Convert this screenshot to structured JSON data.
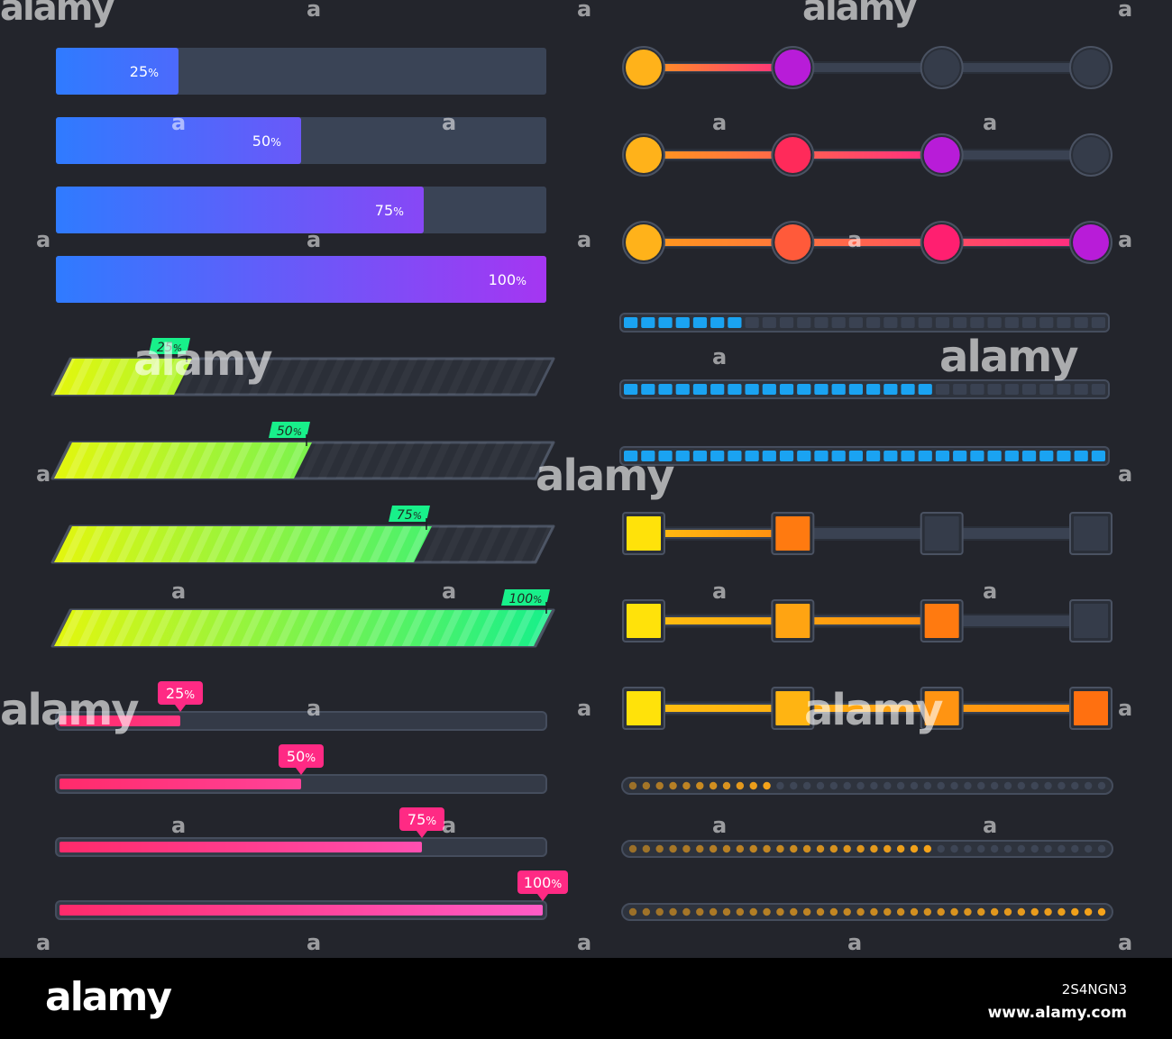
{
  "colors": {
    "background": "#23252c",
    "track": "#3a4456",
    "blue_start": "#2f7bff",
    "violet_end": "#a536f2",
    "green_start": "#e2f60e",
    "green_end": "#18f08a",
    "pink": "#ff2a84",
    "yellow": "#ffe20a",
    "orange": "#ff7a10",
    "cyan": "#1aa3f2",
    "gold": "#f5a31a"
  },
  "gradient_bars": [
    {
      "label": "25",
      "unit": "%",
      "value": 0.25
    },
    {
      "label": "50",
      "unit": "%",
      "value": 0.5
    },
    {
      "label": "75",
      "unit": "%",
      "value": 0.75
    },
    {
      "label": "100",
      "unit": "%",
      "value": 1.0
    }
  ],
  "striped_bars": [
    {
      "label": "25",
      "unit": "%",
      "value": 0.25
    },
    {
      "label": "50",
      "unit": "%",
      "value": 0.5
    },
    {
      "label": "75",
      "unit": "%",
      "value": 0.75
    },
    {
      "label": "100",
      "unit": "%",
      "value": 1.0
    }
  ],
  "tooltip_bars": [
    {
      "label": "25",
      "unit": "%",
      "value": 0.25
    },
    {
      "label": "50",
      "unit": "%",
      "value": 0.5
    },
    {
      "label": "75",
      "unit": "%",
      "value": 0.75
    },
    {
      "label": "100",
      "unit": "%",
      "value": 1.0
    }
  ],
  "round_steppers": [
    {
      "steps_total": 4,
      "steps_done": 2
    },
    {
      "steps_total": 4,
      "steps_done": 3
    },
    {
      "steps_total": 4,
      "steps_done": 4
    }
  ],
  "segment_bars": [
    {
      "segments_total": 28,
      "segments_filled": 7
    },
    {
      "segments_total": 28,
      "segments_filled": 18
    },
    {
      "segments_total": 28,
      "segments_filled": 28
    }
  ],
  "square_steppers": [
    {
      "steps_total": 4,
      "steps_done": 2
    },
    {
      "steps_total": 4,
      "steps_done": 3
    },
    {
      "steps_total": 4,
      "steps_done": 4
    }
  ],
  "dot_bars": [
    {
      "dots_total": 36,
      "dots_filled": 11
    },
    {
      "dots_total": 36,
      "dots_filled": 23
    },
    {
      "dots_total": 36,
      "dots_filled": 36
    }
  ],
  "watermark": {
    "text": "alamy",
    "mark": "a"
  },
  "footer": {
    "logo": "alamy",
    "image_id": "2S4NGN3",
    "url": "www.alamy.com"
  }
}
